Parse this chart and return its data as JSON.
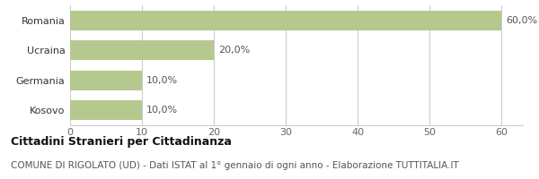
{
  "categories": [
    "Romania",
    "Ucraina",
    "Germania",
    "Kosovo"
  ],
  "values": [
    60.0,
    20.0,
    10.0,
    10.0
  ],
  "labels": [
    "60,0%",
    "20,0%",
    "10,0%",
    "10,0%"
  ],
  "bar_color": "#b5c98e",
  "background_color": "#ffffff",
  "xlim": [
    0,
    63
  ],
  "xticks": [
    0,
    10,
    20,
    30,
    40,
    50,
    60
  ],
  "title_bold": "Cittadini Stranieri per Cittadinanza",
  "subtitle": "COMUNE DI RIGOLATO (UD) - Dati ISTAT al 1° gennaio di ogni anno - Elaborazione TUTTITALIA.IT",
  "title_fontsize": 9,
  "subtitle_fontsize": 7.5,
  "bar_label_fontsize": 8,
  "tick_fontsize": 8,
  "ytick_fontsize": 8,
  "grid_color": "#cccccc",
  "label_color": "#555555",
  "bar_height": 0.65
}
